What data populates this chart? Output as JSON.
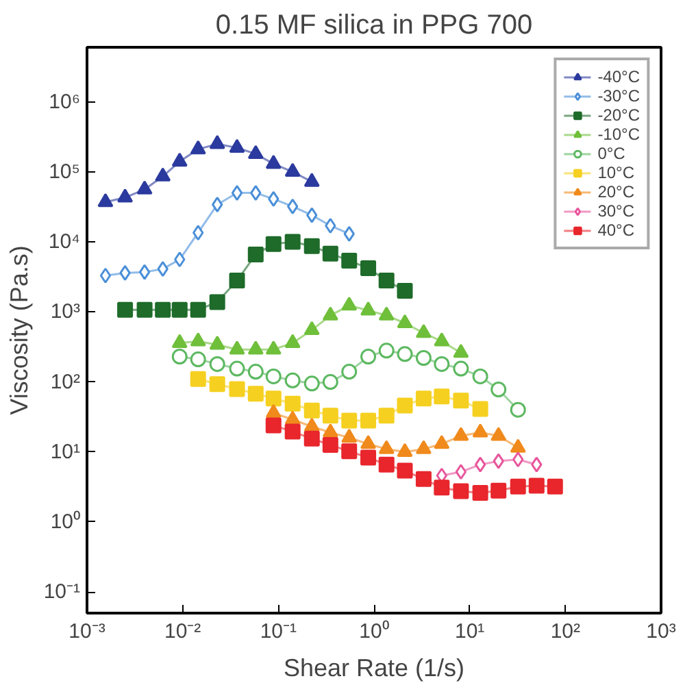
{
  "chart_data": {
    "type": "line",
    "title": "0.15 MF silica in PPG 700",
    "xlabel": "Shear Rate (1/s)",
    "ylabel": "Viscosity (Pa.s)",
    "log": "xy",
    "grid": false,
    "legend": "top right",
    "line_style": "solid",
    "xlim": [
      0.001,
      1000
    ],
    "ylim": [
      0.05,
      6000000
    ],
    "xticks": [
      {
        "value": 0.001,
        "label": "10⁻³"
      },
      {
        "value": 0.01,
        "label": "10⁻²"
      },
      {
        "value": 0.1,
        "label": "10⁻¹"
      },
      {
        "value": 1,
        "label": "10⁰"
      },
      {
        "value": 10,
        "label": "10¹"
      },
      {
        "value": 100,
        "label": "10²"
      },
      {
        "value": 1000,
        "label": "10³"
      }
    ],
    "yticks": [
      {
        "value": 0.1,
        "label": "10⁻¹"
      },
      {
        "value": 1,
        "label": "10⁰"
      },
      {
        "value": 10,
        "label": "10¹"
      },
      {
        "value": 100,
        "label": "10²"
      },
      {
        "value": 1000,
        "label": "10³"
      },
      {
        "value": 10000,
        "label": "10⁴"
      },
      {
        "value": 100000,
        "label": "10⁵"
      },
      {
        "value": 1000000,
        "label": "10⁶"
      }
    ],
    "series": [
      {
        "name": "-40°C",
        "color": "#2b3a9e",
        "marker": "triangle",
        "x": [
          0.00156,
          0.0025,
          0.004,
          0.0062,
          0.0093,
          0.0145,
          0.023,
          0.037,
          0.058,
          0.089,
          0.141,
          0.224
        ],
        "values": [
          37000,
          43000,
          56000,
          86000,
          140000,
          210000,
          250000,
          220000,
          180000,
          130000,
          100000,
          72000
        ]
      },
      {
        "name": "-30°C",
        "color": "#4a8fd8",
        "marker": "diamond",
        "x": [
          0.00156,
          0.0025,
          0.004,
          0.0062,
          0.0093,
          0.0145,
          0.023,
          0.037,
          0.058,
          0.089,
          0.141,
          0.224,
          0.35,
          0.55
        ],
        "values": [
          3300,
          3600,
          3700,
          4100,
          5600,
          13500,
          34000,
          50000,
          50000,
          41000,
          32000,
          24000,
          17000,
          13000
        ]
      },
      {
        "name": "-20°C",
        "color": "#1e6b2a",
        "marker": "square",
        "x": [
          0.0025,
          0.004,
          0.0062,
          0.0093,
          0.0145,
          0.023,
          0.037,
          0.058,
          0.089,
          0.141,
          0.224,
          0.35,
          0.55,
          0.87,
          1.35,
          2.1
        ],
        "values": [
          1070,
          1070,
          1070,
          1070,
          1070,
          1380,
          2800,
          6600,
          9300,
          10000,
          8700,
          6800,
          5400,
          4200,
          2800,
          2000
        ]
      },
      {
        "name": "-10°C",
        "color": "#6fbf3a",
        "marker": "triangle",
        "x": [
          0.0093,
          0.0145,
          0.023,
          0.037,
          0.058,
          0.089,
          0.141,
          0.224,
          0.35,
          0.55,
          0.87,
          1.35,
          2.1,
          3.3,
          5.1,
          8.1
        ],
        "values": [
          360,
          380,
          340,
          290,
          290,
          290,
          360,
          550,
          890,
          1230,
          1050,
          890,
          690,
          500,
          380,
          260
        ]
      },
      {
        "name": "0°C",
        "color": "#5cb860",
        "marker": "circle",
        "x": [
          0.0093,
          0.0145,
          0.023,
          0.037,
          0.058,
          0.089,
          0.141,
          0.224,
          0.35,
          0.55,
          0.87,
          1.35,
          2.1,
          3.3,
          5.1,
          8.1,
          12.9,
          20,
          32
        ],
        "values": [
          230,
          210,
          180,
          155,
          140,
          120,
          105,
          95,
          100,
          140,
          230,
          280,
          250,
          220,
          180,
          155,
          120,
          78,
          40
        ]
      },
      {
        "name": "10°C",
        "color": "#f5d020",
        "marker": "square",
        "x": [
          0.0145,
          0.023,
          0.037,
          0.058,
          0.089,
          0.141,
          0.224,
          0.35,
          0.55,
          0.87,
          1.35,
          2.1,
          3.3,
          5.1,
          8.1,
          12.9
        ],
        "values": [
          110,
          93,
          79,
          68,
          58,
          49,
          39,
          33,
          28,
          28,
          33,
          46,
          58,
          62,
          54,
          41
        ]
      },
      {
        "name": "20°C",
        "color": "#f08a1c",
        "marker": "triangle",
        "x": [
          0.089,
          0.141,
          0.224,
          0.35,
          0.55,
          0.87,
          1.35,
          2.1,
          3.3,
          5.1,
          8.1,
          12.9,
          20,
          32
        ],
        "values": [
          36,
          29,
          23,
          19,
          16,
          13,
          11,
          10,
          11,
          13,
          17,
          19,
          17,
          11.5
        ]
      },
      {
        "name": "30°C",
        "color": "#e8559c",
        "marker": "diamond",
        "x": [
          5.1,
          8.1,
          12.9,
          20,
          32,
          50
        ],
        "values": [
          4.6,
          5.2,
          6.6,
          7.4,
          7.8,
          6.6
        ]
      },
      {
        "name": "40°C",
        "color": "#e8262c",
        "marker": "square",
        "x": [
          0.089,
          0.141,
          0.224,
          0.35,
          0.55,
          0.87,
          1.35,
          2.1,
          3.3,
          5.1,
          8.1,
          12.9,
          20,
          32,
          50,
          78
        ],
        "values": [
          24,
          19.5,
          15.5,
          12.6,
          10.2,
          8.3,
          6.6,
          5.4,
          4.1,
          3.1,
          2.75,
          2.6,
          2.8,
          3.2,
          3.3,
          3.2
        ]
      }
    ]
  }
}
